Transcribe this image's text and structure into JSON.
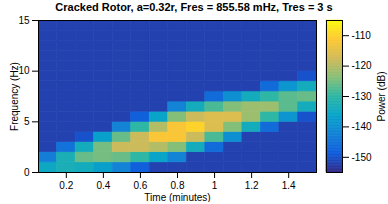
{
  "chart_data": {
    "type": "heatmap",
    "title": "Cracked Rotor, a=0.32r, Fres = 855.58 mHz, Tres = 3 s",
    "x_label": "Time (minutes)",
    "y_label": "Frequency (Hz)",
    "time_bins": [
      0.05,
      0.15,
      0.25,
      0.35,
      0.45,
      0.55,
      0.65,
      0.75,
      0.85,
      0.95,
      1.05,
      1.15,
      1.25,
      1.35,
      1.45,
      1.55
    ],
    "frequency_bins": [
      0,
      1,
      2,
      3,
      4,
      5,
      6,
      7,
      8,
      9,
      10,
      11,
      12,
      13,
      14,
      15
    ],
    "power": [
      [
        -135,
        -133,
        -134,
        -137,
        -142,
        -148,
        -152,
        -152,
        -152,
        -152,
        -152,
        -152,
        -152,
        -152,
        -152
      ],
      [
        -143,
        -133,
        -126,
        -125,
        -126,
        -130,
        -136,
        -142,
        -152,
        -152,
        -152,
        -152,
        -152,
        -152,
        -152
      ],
      [
        -152,
        -145,
        -134,
        -125,
        -118,
        -118,
        -120,
        -124,
        -134,
        -146,
        -152,
        -152,
        -152,
        -152,
        -152
      ],
      [
        -152,
        -152,
        -150,
        -137,
        -126,
        -118,
        -112,
        -112,
        -118,
        -128,
        -140,
        -152,
        -152,
        -152,
        -152
      ],
      [
        -152,
        -152,
        -152,
        -152,
        -142,
        -130,
        -120,
        -112,
        -110,
        -116,
        -124,
        -134,
        -146,
        -152,
        -152
      ],
      [
        -152,
        -152,
        -152,
        -152,
        -152,
        -148,
        -136,
        -124,
        -118,
        -116,
        -116,
        -122,
        -130,
        -139,
        -150
      ],
      [
        -152,
        -152,
        -152,
        -152,
        -152,
        -152,
        -152,
        -142,
        -134,
        -128,
        -124,
        -122,
        -122,
        -127,
        -134
      ],
      [
        -152,
        -152,
        -152,
        -152,
        -152,
        -152,
        -152,
        -152,
        -152,
        -146,
        -140,
        -134,
        -130,
        -127,
        -126
      ],
      [
        -152,
        -152,
        -152,
        -152,
        -152,
        -152,
        -152,
        -152,
        -152,
        -152,
        -152,
        -152,
        -146,
        -139,
        -134
      ],
      [
        -152,
        -152,
        -152,
        -152,
        -152,
        -152,
        -152,
        -152,
        -152,
        -152,
        -152,
        -152,
        -152,
        -152,
        -150
      ],
      [
        -152,
        -152,
        -152,
        -152,
        -152,
        -152,
        -152,
        -152,
        -152,
        -152,
        -152,
        -152,
        -152,
        -152,
        -152
      ],
      [
        -152,
        -152,
        -152,
        -152,
        -152,
        -152,
        -152,
        -152,
        -152,
        -152,
        -152,
        -152,
        -152,
        -152,
        -152
      ],
      [
        -152,
        -152,
        -152,
        -152,
        -152,
        -152,
        -152,
        -152,
        -152,
        -152,
        -152,
        -152,
        -152,
        -152,
        -152
      ],
      [
        -152,
        -152,
        -152,
        -152,
        -152,
        -152,
        -152,
        -152,
        -152,
        -152,
        -152,
        -152,
        -152,
        -152,
        -152
      ],
      [
        -152,
        -152,
        -152,
        -152,
        -152,
        -152,
        -152,
        -152,
        -152,
        -152,
        -152,
        -152,
        -152,
        -152,
        -152
      ]
    ],
    "xlim": [
      0.05,
      1.55
    ],
    "xticks": [
      0.2,
      0.4,
      0.6,
      0.8,
      1,
      1.2,
      1.4
    ],
    "ylim": [
      0,
      15
    ],
    "yticks": [
      0,
      5,
      10,
      15
    ],
    "colorbar": {
      "label": "Power (dB)",
      "range": [
        -155,
        -105
      ],
      "ticks": [
        -150,
        -140,
        -130,
        -120,
        -110
      ]
    }
  }
}
